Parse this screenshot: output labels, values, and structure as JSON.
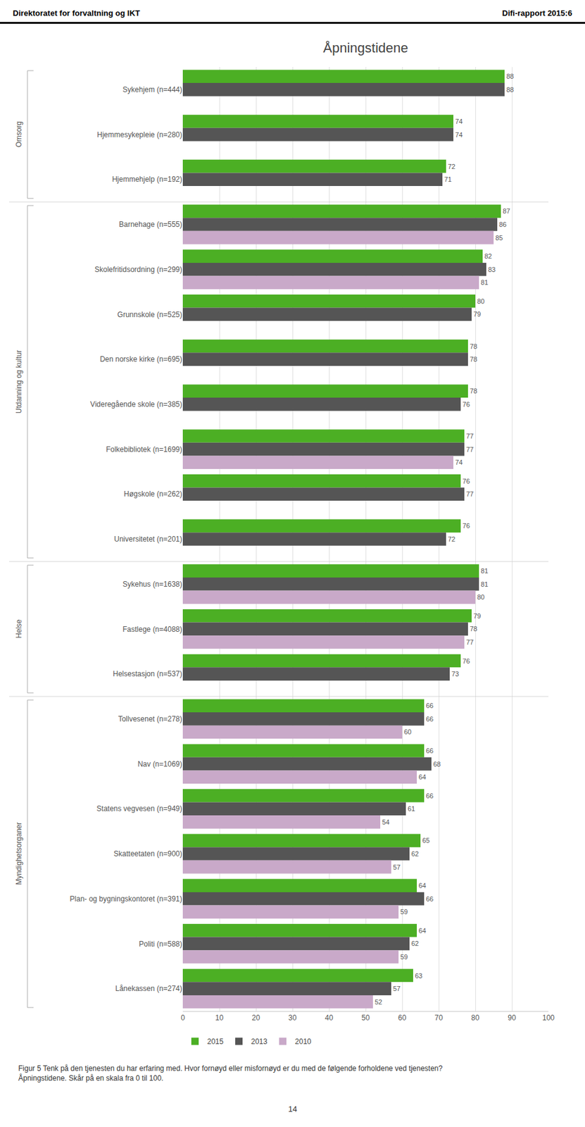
{
  "chart_data": {
    "type": "bar",
    "orientation": "horizontal",
    "title": "Åpningstidene",
    "categories": [
      "Sykehjem (n=444)",
      "Hjemmesykepleie (n=280)",
      "Hjemmehjelp (n=192)",
      "Barnehage (n=555)",
      "Skolefritidsordning (n=299)",
      "Grunnskole (n=525)",
      "Den norske kirke (n=695)",
      "Videregående skole (n=385)",
      "Folkebibliotek (n=1699)",
      "Høgskole (n=262)",
      "Universitetet (n=201)",
      "Sykehus (n=1638)",
      "Fastlege (n=4088)",
      "Helsestasjon (n=537)",
      "Tollvesenet (n=278)",
      "Nav (n=1069)",
      "Statens vegvesen (n=949)",
      "Skatteetaten (n=900)",
      "Plan- og bygningskontoret (n=391)",
      "Politi (n=588)",
      "Lånekassen (n=274)"
    ],
    "series": [
      {
        "name": "2015",
        "color": "#4caf24",
        "values": [
          88,
          74,
          72,
          87,
          82,
          80,
          78,
          78,
          77,
          76,
          76,
          81,
          79,
          76,
          66,
          66,
          66,
          65,
          64,
          64,
          63
        ]
      },
      {
        "name": "2013",
        "color": "#555555",
        "values": [
          88,
          74,
          71,
          86,
          83,
          79,
          78,
          76,
          77,
          77,
          72,
          81,
          78,
          73,
          66,
          68,
          61,
          62,
          66,
          62,
          57
        ]
      },
      {
        "name": "2010",
        "color": "#c9a9c9",
        "values": [
          null,
          null,
          null,
          85,
          81,
          null,
          null,
          null,
          74,
          null,
          null,
          80,
          77,
          null,
          60,
          64,
          54,
          57,
          59,
          59,
          52
        ]
      }
    ],
    "xlim": [
      0,
      100
    ],
    "xticks": [
      0,
      10,
      20,
      30,
      40,
      50,
      60,
      70,
      80,
      90,
      100
    ],
    "grid": true,
    "legend": "lower left",
    "data_labels": true,
    "groups": [
      {
        "label": "Omsorg",
        "from": "Sykehjem (n=444)",
        "to": "Hjemmehjelp (n=192)"
      },
      {
        "label": "Utdanning og kultur",
        "from": "Barnehage (n=555)",
        "to": "Universitetet (n=201)"
      },
      {
        "label": "Helse",
        "from": "Sykehus (n=1638)",
        "to": "Helsestasjon (n=537)"
      },
      {
        "label": "Myndighetsorganer",
        "from": "Tollvesenet (n=278)",
        "to": "Lånekassen (n=274)"
      }
    ],
    "annotations": [
      "Direktoratet for forvaltning og IKT",
      "Difi-rapport 2015:6",
      "Figur 5 Tenk på den tjenesten du har erfaring med. Hvor fornøyd eller misfornøyd er du med de følgende forholdene ved tjenesten? Åpningstidene. Skår på en skala fra 0 til 100.",
      "14"
    ]
  }
}
